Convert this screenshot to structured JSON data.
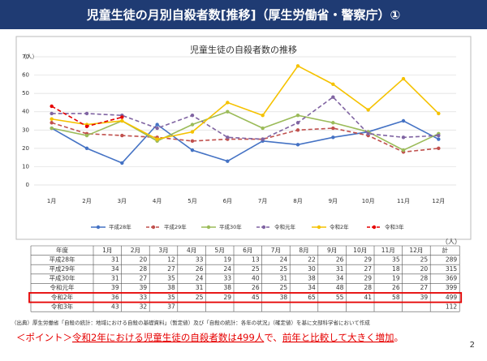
{
  "header": {
    "title": "児童生徒の月別自殺者数[推移]（厚生労働省・警察庁）①"
  },
  "chart_data": {
    "type": "line",
    "title": "児童生徒の自殺者数の推移",
    "ylabel": "（人）",
    "categories": [
      "1月",
      "2月",
      "3月",
      "4月",
      "5月",
      "6月",
      "7月",
      "8月",
      "9月",
      "10月",
      "11月",
      "12月"
    ],
    "ylim": [
      0,
      70
    ],
    "yticks": [
      0,
      10,
      20,
      30,
      40,
      50,
      60,
      70
    ],
    "grid": true,
    "legend": "bottom",
    "series": [
      {
        "name": "平成28年",
        "color": "#4472c4",
        "dashed": false,
        "values": [
          31,
          20,
          12,
          33,
          19,
          13,
          24,
          22,
          26,
          29,
          35,
          25
        ]
      },
      {
        "name": "平成29年",
        "color": "#c0504d",
        "dashed": true,
        "values": [
          34,
          28,
          27,
          26,
          24,
          25,
          25,
          30,
          31,
          27,
          18,
          20
        ]
      },
      {
        "name": "平成30年",
        "color": "#9bbb59",
        "dashed": false,
        "values": [
          31,
          27,
          35,
          24,
          33,
          40,
          31,
          38,
          34,
          29,
          19,
          28
        ]
      },
      {
        "name": "令和元年",
        "color": "#8064a2",
        "dashed": true,
        "values": [
          39,
          39,
          38,
          31,
          38,
          26,
          25,
          34,
          48,
          28,
          26,
          27
        ]
      },
      {
        "name": "令和2年",
        "color": "#f5c200",
        "dashed": false,
        "values": [
          36,
          33,
          35,
          25,
          29,
          45,
          38,
          65,
          55,
          41,
          58,
          39
        ]
      },
      {
        "name": "令和3年",
        "color": "#e60000",
        "dashed": true,
        "values": [
          43,
          32,
          37,
          null,
          null,
          null,
          null,
          null,
          null,
          null,
          null,
          null
        ]
      }
    ]
  },
  "table": {
    "unit": "（人）",
    "header_first": "年度",
    "header_total": "計",
    "totals": [
      289,
      315,
      369,
      399,
      499,
      112
    ],
    "highlight_row": 4
  },
  "footnote": "（出典）厚生労働省「自殺の統計：地域における自殺の基礎資料」（暫定値）及び「自殺の統計：各年の状況」（確定値）を基に文部科学省において作成",
  "point": {
    "parts": [
      "＜ポイント＞",
      "令和2年における児童生徒の自殺者数は499人",
      "で、",
      "前年と比較して大きく増加",
      "。"
    ]
  },
  "page_number": "2"
}
